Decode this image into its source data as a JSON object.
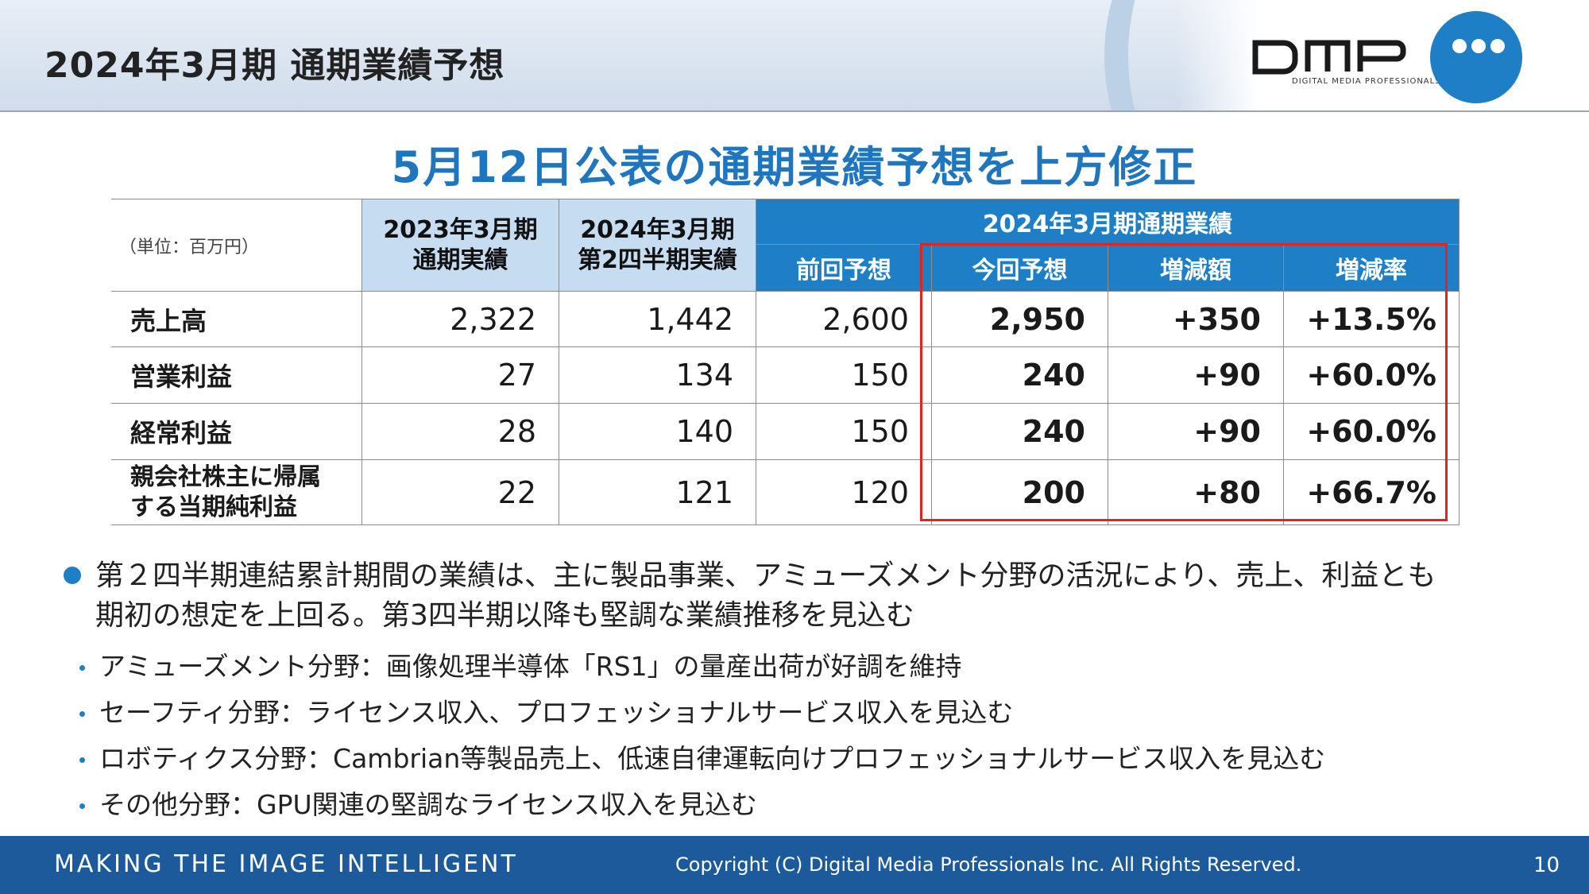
{
  "header": {
    "title": "2024年3月期 通期業績予想"
  },
  "logo": {
    "brand": "DMP",
    "tagline": "DIGITAL MEDIA PROFESSIONALS"
  },
  "headline": "5月12日公表の通期業績予想を上方修正",
  "table": {
    "unit": "（単位：百万円）",
    "col1": [
      "2023年3月期",
      "通期実績"
    ],
    "col2": [
      "2024年3月期",
      "第2四半期実績"
    ],
    "group": "2024年3月期通期業績",
    "sub_headers": [
      "前回予想",
      "今回予想",
      "増減額",
      "増減率"
    ],
    "rows": [
      {
        "label": [
          "売上高"
        ],
        "values": [
          "2,322",
          "1,442",
          "2,600",
          "2,950",
          "+350",
          "+13.5%"
        ]
      },
      {
        "label": [
          "営業利益"
        ],
        "values": [
          "27",
          "134",
          "150",
          "240",
          "+90",
          "+60.0%"
        ]
      },
      {
        "label": [
          "経常利益"
        ],
        "values": [
          "28",
          "140",
          "150",
          "240",
          "+90",
          "+60.0%"
        ]
      },
      {
        "label": [
          "親会社株主に帰属",
          "する当期純利益"
        ],
        "values": [
          "22",
          "121",
          "120",
          "200",
          "+80",
          "+66.7%"
        ]
      }
    ]
  },
  "bullets": {
    "main": [
      "第２四半期連結累計期間の業績は、主に製品事業、アミューズメント分野の活況により、売上、利益とも",
      "期初の想定を上回る。第3四半期以降も堅調な業績推移を見込む"
    ],
    "sub": [
      "アミューズメント分野：画像処理半導体「RS1」の量産出荷が好調を維持",
      "セーフティ分野：ライセンス収入、プロフェッショナルサービス収入を見込む",
      "ロボティクス分野：Cambrian等製品売上、低速自律運転向けプロフェッショナルサービス収入を見込む",
      "その他分野：GPU関連の堅調なライセンス収入を見込む"
    ]
  },
  "footer": {
    "slogan": "MAKING THE IMAGE INTELLIGENT",
    "copyright": "Copyright (C) Digital Media Professionals Inc. All Rights Reserved.",
    "page": "10"
  },
  "colors": {
    "accent": "#1e7fc6",
    "header_light": "#c6dcf1",
    "highlight_border": "#e02424",
    "footer": "#1c5a9c"
  }
}
